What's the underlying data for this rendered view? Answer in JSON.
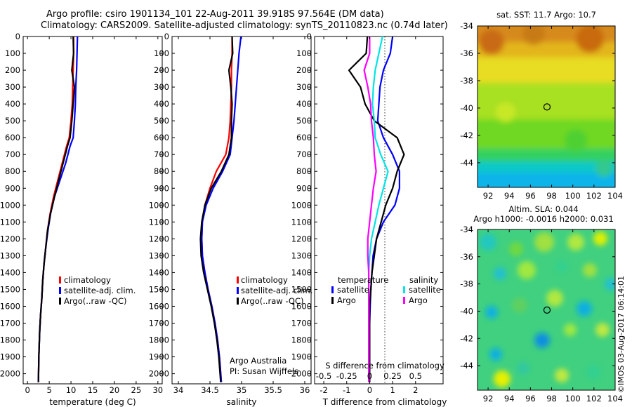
{
  "header": {
    "line1": "Argo profile: csiro 1901134_101 22-Aug-2011 39.918S 97.564E (DM data)",
    "line2": "Climatology: CARS2009. Satellite-adjusted climatology: synTS_20110823.nc (0.74d later)"
  },
  "depth_ticks": [
    "0",
    "100",
    "200",
    "300",
    "400",
    "500",
    "600",
    "700",
    "800",
    "900",
    "1000",
    "1100",
    "1200",
    "1300",
    "1400",
    "1500",
    "1600",
    "1700",
    "1800",
    "1900",
    "2000"
  ],
  "colors": {
    "climatology": "#ff0000",
    "satellite": "#0000ff",
    "argo": "#000000",
    "sat_salinity": "#00e5e5",
    "argo_salinity": "#ff00ff"
  },
  "panels": {
    "temperature": {
      "xlabel": "temperature (deg C)",
      "xticks": [
        "0",
        "5",
        "10",
        "15",
        "20",
        "25",
        "30"
      ],
      "legend": [
        "climatology",
        "satellite-adj. clim.",
        "Argo(..raw -QC)"
      ]
    },
    "salinity": {
      "xlabel": "salinity",
      "xticks": [
        "34",
        "34.5",
        "35",
        "35.5",
        "36"
      ],
      "legend": [
        "climatology",
        "satellite-adj. clim.",
        "Argo(..raw -QC)"
      ],
      "note1": "Argo Australia",
      "note2": "PI: Susan Wijffels"
    },
    "difference": {
      "xlabel": "T difference from climatology",
      "xticks": [
        "-2",
        "-1",
        "0",
        "1",
        "2"
      ],
      "top_label": "S difference from climatology",
      "top_ticks": [
        "-0.5",
        "-0.25",
        "0",
        "0.25",
        "0.5"
      ],
      "legend_temp_title": "temperature",
      "legend_sal_title": "salinity",
      "legend_temp": [
        "satellite",
        "Argo"
      ],
      "legend_sal": [
        "satellite",
        "Argo"
      ]
    },
    "sst_map": {
      "title": "sat. SST: 11.7 Argo: 10.7",
      "yticks": [
        "-34",
        "-36",
        "-38",
        "-40",
        "-42",
        "-44"
      ],
      "xticks": [
        "92",
        "94",
        "96",
        "98",
        "100",
        "102",
        "104"
      ]
    },
    "sla_map": {
      "title1": "Altim. SLA: 0.044",
      "title2": "Argo h1000: -0.0016 h2000: 0.031",
      "yticks": [
        "-34",
        "-36",
        "-38",
        "-40",
        "-42",
        "-44"
      ],
      "xticks": [
        "92",
        "94",
        "96",
        "98",
        "100",
        "102",
        "104"
      ]
    }
  },
  "credit": "©IMOS 03-Aug-2017 06:14:01",
  "chart_data": [
    {
      "type": "line",
      "xlabel": "temperature (deg C)",
      "ylabel": "",
      "xlim": [
        -1,
        31
      ],
      "ylim": [
        2060,
        0
      ],
      "series": [
        {
          "name": "climatology",
          "x": [
            10.6,
            10.6,
            10.5,
            10.4,
            10.3,
            10.0,
            9.6,
            9.0,
            8.0,
            7.0,
            6.0,
            5.2,
            4.6,
            4.2,
            3.8,
            3.5,
            3.3,
            3.0,
            2.8,
            2.6,
            2.5
          ],
          "y": [
            0,
            100,
            200,
            300,
            400,
            500,
            600,
            650,
            750,
            850,
            950,
            1050,
            1150,
            1250,
            1350,
            1450,
            1550,
            1650,
            1750,
            1900,
            2050
          ]
        },
        {
          "name": "satellite-adj. clim.",
          "x": [
            11.5,
            11.4,
            11.3,
            11.1,
            11.0,
            10.8,
            10.5,
            9.8,
            8.8,
            7.5,
            6.2,
            5.3,
            4.7,
            4.2,
            3.8,
            3.5,
            3.3,
            3.0,
            2.8,
            2.6,
            2.5
          ],
          "y": [
            0,
            100,
            200,
            300,
            400,
            500,
            600,
            650,
            750,
            850,
            950,
            1050,
            1150,
            1250,
            1350,
            1450,
            1550,
            1650,
            1750,
            1900,
            2050
          ]
        },
        {
          "name": "Argo(..raw -QC)",
          "x": [
            10.5,
            10.6,
            10.2,
            10.8,
            10.5,
            10.2,
            9.8,
            9.2,
            8.2,
            7.2,
            6.2,
            5.3,
            4.6,
            4.2,
            3.8,
            3.5,
            3.3,
            3.0,
            2.8,
            2.6,
            2.5
          ],
          "y": [
            0,
            100,
            200,
            300,
            400,
            500,
            600,
            650,
            750,
            850,
            950,
            1050,
            1150,
            1250,
            1350,
            1450,
            1550,
            1650,
            1750,
            1900,
            2050
          ]
        }
      ]
    },
    {
      "type": "line",
      "xlabel": "salinity",
      "ylabel": "",
      "xlim": [
        33.9,
        36.1
      ],
      "ylim": [
        2060,
        0
      ],
      "series": [
        {
          "name": "climatology",
          "x": [
            34.85,
            34.85,
            34.84,
            34.84,
            34.83,
            34.82,
            34.8,
            34.75,
            34.6,
            34.5,
            34.42,
            34.38,
            34.37,
            34.38,
            34.42,
            34.47,
            34.53,
            34.58,
            34.62,
            34.65,
            34.68
          ],
          "y": [
            0,
            100,
            200,
            300,
            400,
            500,
            600,
            700,
            800,
            900,
            1000,
            1100,
            1200,
            1300,
            1400,
            1500,
            1600,
            1700,
            1800,
            1900,
            2050
          ]
        },
        {
          "name": "satellite-adj. clim.",
          "x": [
            34.99,
            34.96,
            34.94,
            34.92,
            34.9,
            34.88,
            34.85,
            34.82,
            34.7,
            34.55,
            34.44,
            34.38,
            34.37,
            34.38,
            34.42,
            34.47,
            34.53,
            34.58,
            34.62,
            34.65,
            34.68
          ],
          "y": [
            0,
            100,
            200,
            300,
            400,
            500,
            600,
            700,
            800,
            900,
            1000,
            1100,
            1200,
            1300,
            1400,
            1500,
            1600,
            1700,
            1800,
            1900,
            2050
          ]
        },
        {
          "name": "Argo(..raw -QC)",
          "x": [
            34.85,
            34.86,
            34.8,
            34.83,
            34.85,
            34.84,
            34.84,
            34.8,
            34.68,
            34.52,
            34.42,
            34.37,
            34.35,
            34.36,
            34.4,
            34.46,
            34.52,
            34.57,
            34.61,
            34.64,
            34.67
          ],
          "y": [
            0,
            100,
            200,
            300,
            400,
            500,
            600,
            700,
            800,
            900,
            1000,
            1100,
            1200,
            1300,
            1400,
            1500,
            1600,
            1700,
            1800,
            1900,
            2050
          ]
        }
      ]
    },
    {
      "type": "line",
      "xlabel": "T difference from climatology",
      "ylabel": "",
      "xlim": [
        -2.4,
        3.2
      ],
      "ylim": [
        2060,
        0
      ],
      "series": [
        {
          "name": "temperature satellite",
          "x": [
            1.0,
            0.9,
            0.6,
            0.45,
            0.4,
            0.35,
            0.6,
            1.0,
            1.3,
            1.3,
            1.1,
            0.6,
            0.3,
            0.15,
            0.1,
            0.05,
            0.02,
            0.0,
            0.0,
            0.0,
            0.0
          ],
          "y": [
            0,
            100,
            200,
            300,
            400,
            500,
            600,
            700,
            800,
            900,
            1000,
            1100,
            1200,
            1300,
            1400,
            1500,
            1600,
            1700,
            1800,
            1900,
            2050
          ]
        },
        {
          "name": "temperature Argo",
          "x": [
            -0.1,
            -0.15,
            -0.9,
            -0.4,
            -0.2,
            0.2,
            1.2,
            1.5,
            1.2,
            1.0,
            0.7,
            0.5,
            0.3,
            0.2,
            0.1,
            0.05,
            0.0,
            0.0,
            0.0,
            0.0,
            0.0
          ],
          "y": [
            0,
            100,
            200,
            300,
            400,
            500,
            600,
            700,
            800,
            900,
            1000,
            1100,
            1200,
            1300,
            1400,
            1500,
            1600,
            1700,
            1800,
            1900,
            2050
          ]
        },
        {
          "name": "salinity satellite",
          "x": [
            0.14,
            0.1,
            0.06,
            0.04,
            0.03,
            0.05,
            0.06,
            0.12,
            0.2,
            0.15,
            0.1,
            0.06,
            0.02,
            0.0,
            -0.01,
            -0.01,
            -0.01,
            -0.01,
            -0.01,
            -0.01,
            -0.01
          ],
          "y": [
            0,
            100,
            200,
            300,
            400,
            500,
            600,
            700,
            800,
            900,
            1000,
            1100,
            1200,
            1300,
            1400,
            1500,
            1600,
            1700,
            1800,
            1900,
            2050
          ]
        },
        {
          "name": "salinity Argo",
          "x": [
            0.0,
            0.0,
            -0.06,
            -0.02,
            0.01,
            0.02,
            0.04,
            0.05,
            0.07,
            0.04,
            0.02,
            0.0,
            -0.02,
            -0.02,
            -0.01,
            -0.01,
            -0.01,
            -0.01,
            -0.01,
            -0.01,
            -0.01
          ],
          "y": [
            0,
            100,
            200,
            300,
            400,
            500,
            600,
            700,
            800,
            900,
            1000,
            1100,
            1200,
            1300,
            1400,
            1500,
            1600,
            1700,
            1800,
            1900,
            2050
          ]
        }
      ]
    },
    {
      "type": "heatmap",
      "title": "sat. SST: 11.7 Argo: 10.7",
      "xlim": [
        91,
        104
      ],
      "ylim": [
        -45.8,
        -34
      ],
      "marker": {
        "lon": 97.564,
        "lat": -39.918
      }
    },
    {
      "type": "heatmap",
      "title": "Altim. SLA: 0.044",
      "xlim": [
        91,
        104
      ],
      "ylim": [
        -45.8,
        -34
      ],
      "marker": {
        "lon": 97.564,
        "lat": -39.918
      }
    }
  ]
}
